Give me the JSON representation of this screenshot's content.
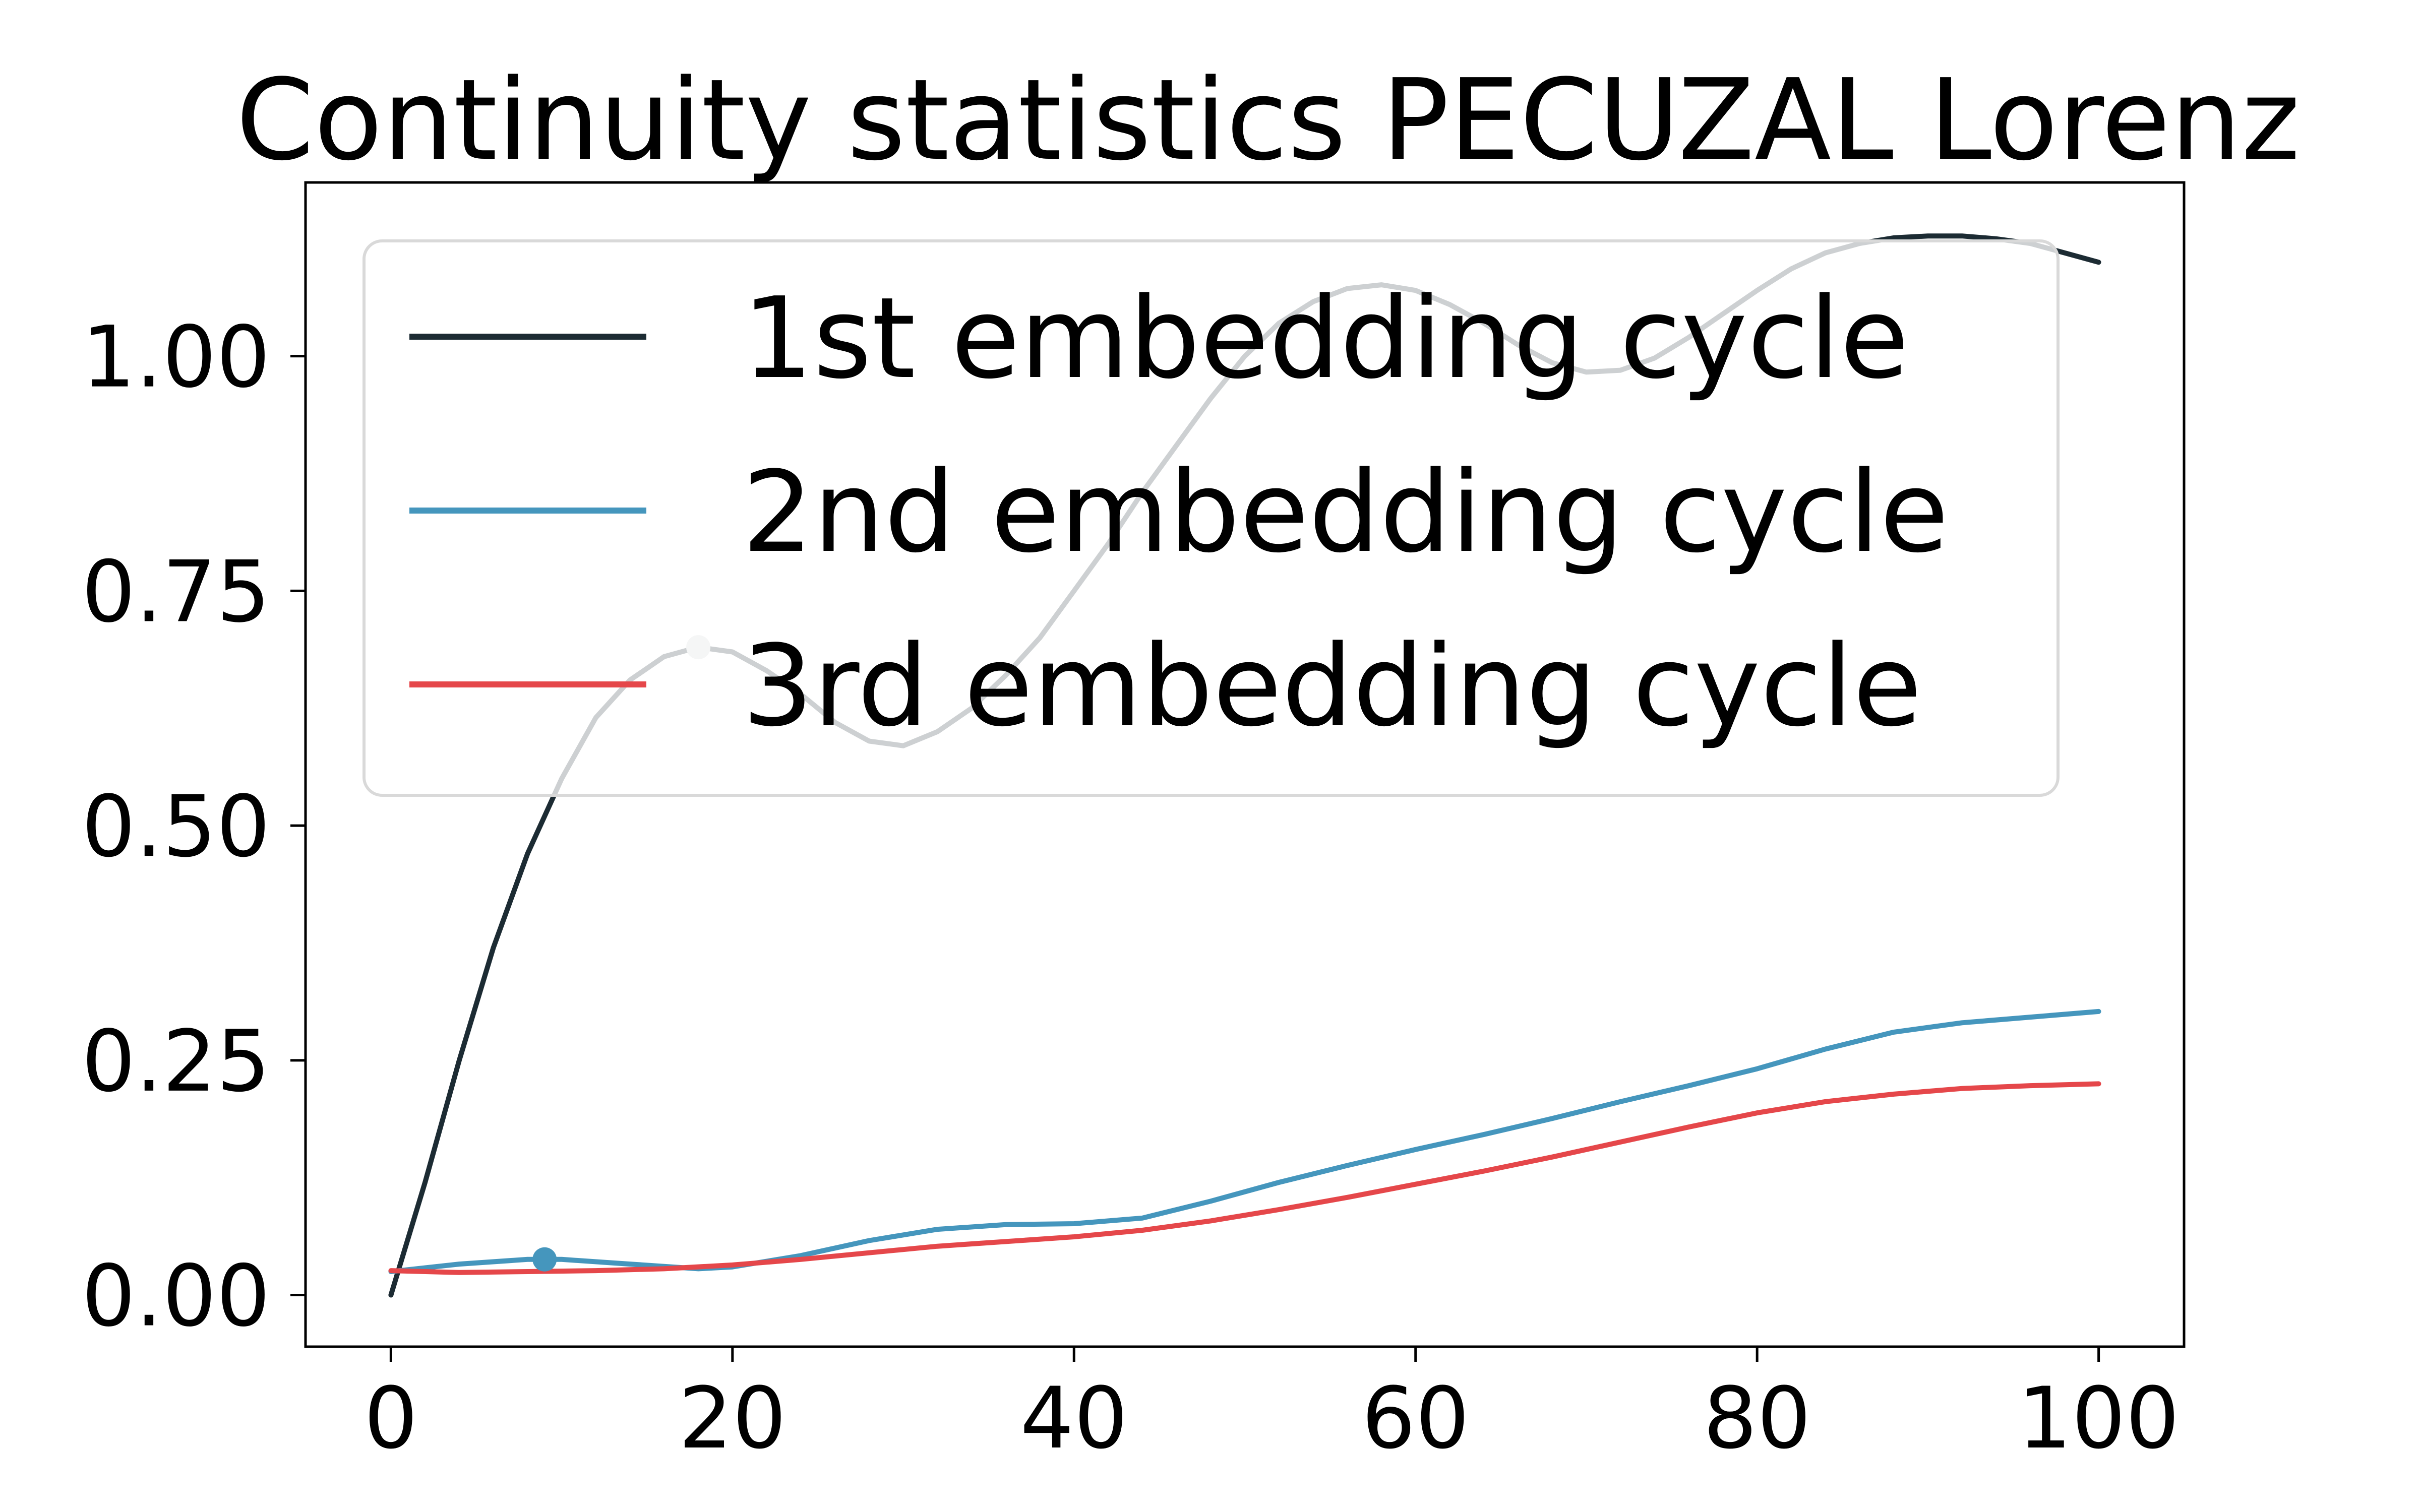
{
  "chart_data": {
    "type": "line",
    "title": "Continuity statistics PECUZAL Lorenz",
    "xlabel": "",
    "ylabel": "",
    "xlim": [
      -5,
      105
    ],
    "ylim": [
      -0.055,
      1.185
    ],
    "x_ticks": [
      0,
      20,
      40,
      60,
      80,
      100
    ],
    "x_tick_labels": [
      "0",
      "20",
      "40",
      "60",
      "80",
      "100"
    ],
    "y_ticks": [
      0.0,
      0.25,
      0.5,
      0.75,
      1.0
    ],
    "y_tick_labels": [
      "0.00",
      "0.25",
      "0.50",
      "0.75",
      "1.00"
    ],
    "grid": false,
    "legend": "upper-left, framed",
    "series": [
      {
        "name": "1st embedding cycle",
        "color": "#1c2b33",
        "x": [
          0,
          2,
          4,
          6,
          8,
          10,
          12,
          14,
          16,
          18,
          20,
          22,
          24,
          26,
          28,
          30,
          32,
          34,
          36,
          38,
          40,
          42,
          44,
          46,
          48,
          50,
          52,
          54,
          56,
          58,
          60,
          62,
          64,
          66,
          68,
          70,
          72,
          74,
          76,
          78,
          80,
          82,
          84,
          86,
          88,
          90,
          92,
          94,
          96,
          98,
          100
        ],
        "y": [
          0.0,
          0.12,
          0.25,
          0.37,
          0.47,
          0.55,
          0.615,
          0.655,
          0.68,
          0.69,
          0.685,
          0.665,
          0.64,
          0.61,
          0.59,
          0.585,
          0.6,
          0.625,
          0.66,
          0.7,
          0.75,
          0.8,
          0.855,
          0.905,
          0.955,
          1.0,
          1.035,
          1.058,
          1.072,
          1.076,
          1.07,
          1.055,
          1.035,
          1.012,
          0.993,
          0.983,
          0.985,
          0.998,
          1.02,
          1.045,
          1.07,
          1.093,
          1.11,
          1.12,
          1.126,
          1.128,
          1.128,
          1.125,
          1.12,
          1.11,
          1.1
        ]
      },
      {
        "name": "2nd embedding cycle",
        "color": "#4596bd",
        "x": [
          0,
          4,
          8,
          10,
          14,
          18,
          20,
          24,
          28,
          32,
          36,
          40,
          44,
          48,
          52,
          56,
          60,
          64,
          68,
          72,
          76,
          80,
          84,
          88,
          92,
          96,
          100
        ],
        "y": [
          0.025,
          0.033,
          0.038,
          0.038,
          0.033,
          0.028,
          0.03,
          0.042,
          0.058,
          0.07,
          0.075,
          0.076,
          0.082,
          0.1,
          0.12,
          0.138,
          0.155,
          0.171,
          0.188,
          0.206,
          0.223,
          0.241,
          0.262,
          0.28,
          0.29,
          0.296,
          0.302
        ]
      },
      {
        "name": "3rd embedding cycle",
        "color": "#e5474a",
        "x": [
          0,
          4,
          8,
          12,
          16,
          20,
          24,
          28,
          32,
          36,
          40,
          44,
          48,
          52,
          56,
          60,
          64,
          68,
          72,
          76,
          80,
          84,
          88,
          92,
          96,
          100
        ],
        "y": [
          0.026,
          0.024,
          0.025,
          0.026,
          0.028,
          0.032,
          0.038,
          0.045,
          0.052,
          0.057,
          0.062,
          0.069,
          0.079,
          0.091,
          0.104,
          0.118,
          0.132,
          0.147,
          0.163,
          0.179,
          0.194,
          0.206,
          0.214,
          0.22,
          0.223,
          0.225
        ]
      }
    ],
    "points": [
      {
        "x": 9,
        "y": 0.038,
        "color": "#4596bd"
      },
      {
        "x": 18,
        "y": 0.69,
        "color": "#d0d4d6"
      }
    ]
  }
}
